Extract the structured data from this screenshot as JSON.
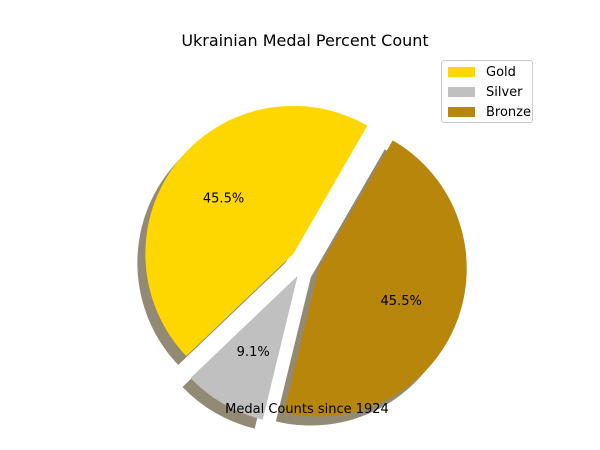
{
  "chart_data": {
    "type": "pie",
    "title": "Ukrainian Medal Percent Count",
    "xlabel": "Medal Counts since 1924",
    "slices": [
      {
        "label": "Gold",
        "percent": 45.5,
        "percent_label": "45.5%",
        "color": "#FFD700"
      },
      {
        "label": "Silver",
        "percent": 9.1,
        "percent_label": "9.1%",
        "color": "#C0C0C0"
      },
      {
        "label": "Bronze",
        "percent": 45.5,
        "percent_label": "45.5%",
        "color": "#B8860B"
      }
    ],
    "exploded": true,
    "shadow": true,
    "legend": "upper right"
  }
}
